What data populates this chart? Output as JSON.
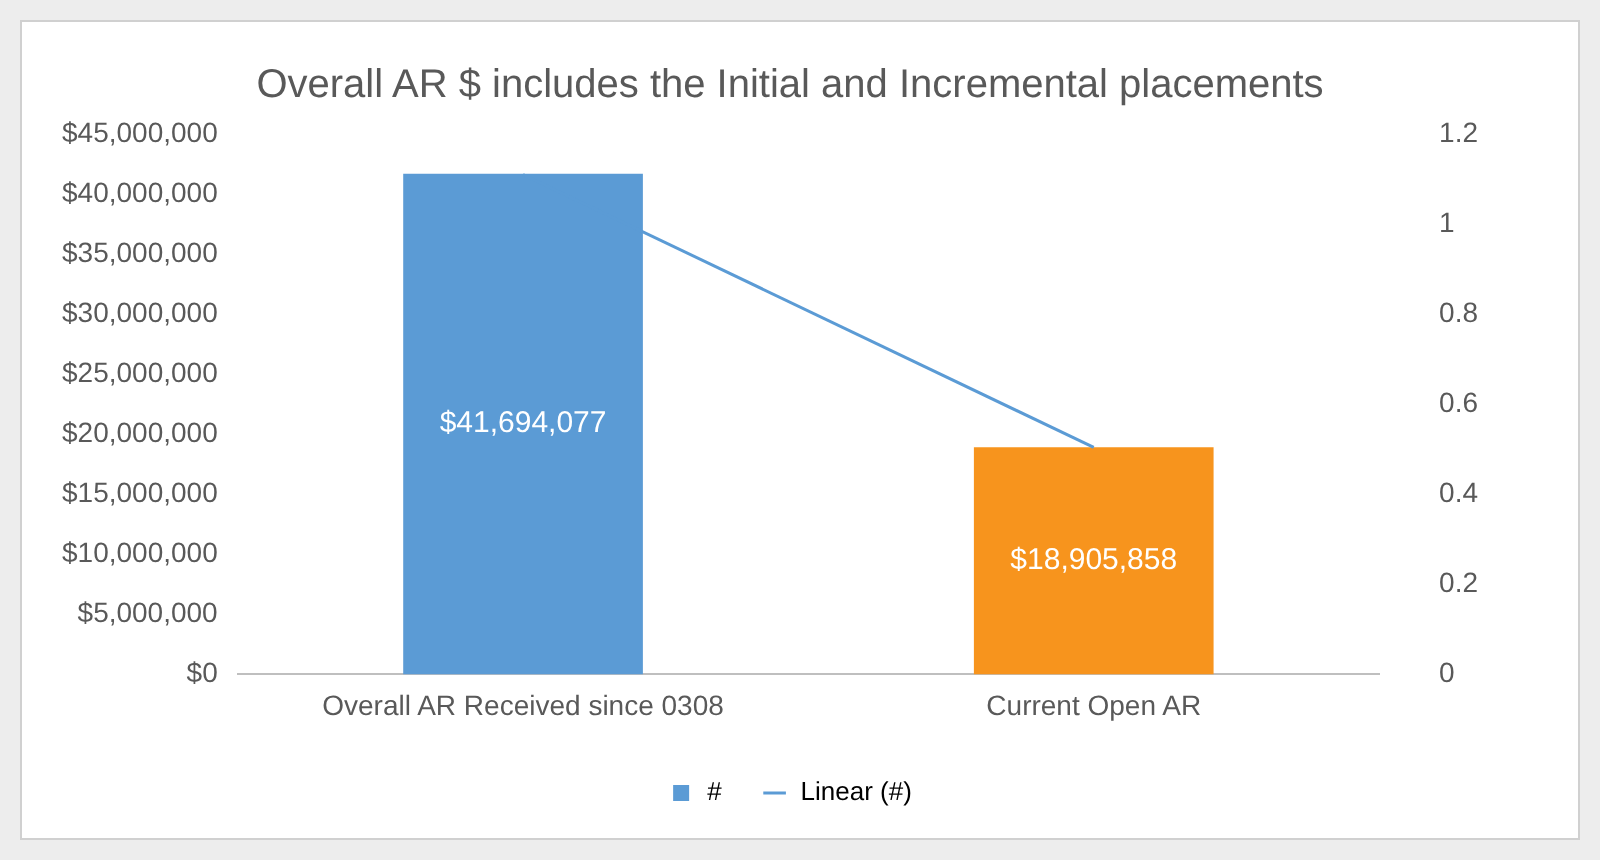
{
  "chart_data": {
    "type": "bar",
    "title": "Overall AR $ includes the Initial and Incremental placements",
    "categories": [
      "Overall AR Received since 0308",
      "Current Open AR"
    ],
    "series": [
      {
        "name": "#",
        "colors": [
          "#5b9bd5",
          "#f7941d"
        ],
        "values": [
          41694077,
          18905858
        ],
        "value_labels": [
          "$41,694,077",
          "$18,905,858"
        ]
      },
      {
        "name": "Linear (#)",
        "type": "line",
        "color": "#5b9bd5",
        "axis": "y2",
        "values": [
          1.11,
          0.504
        ]
      }
    ],
    "ylim": [
      0,
      45000000
    ],
    "yticks": [
      {
        "value": 0,
        "label": "$0"
      },
      {
        "value": 5000000,
        "label": "$5,000,000"
      },
      {
        "value": 10000000,
        "label": "$10,000,000"
      },
      {
        "value": 15000000,
        "label": "$15,000,000"
      },
      {
        "value": 20000000,
        "label": "$20,000,000"
      },
      {
        "value": 25000000,
        "label": "$25,000,000"
      },
      {
        "value": 30000000,
        "label": "$30,000,000"
      },
      {
        "value": 35000000,
        "label": "$35,000,000"
      },
      {
        "value": 40000000,
        "label": "$40,000,000"
      },
      {
        "value": 45000000,
        "label": "$45,000,000"
      }
    ],
    "y2lim": [
      0,
      1.2
    ],
    "y2ticks": [
      0,
      0.2,
      0.4,
      0.6,
      0.8,
      1,
      1.2
    ],
    "grid": false,
    "legend": "bottom",
    "marker": "none"
  }
}
